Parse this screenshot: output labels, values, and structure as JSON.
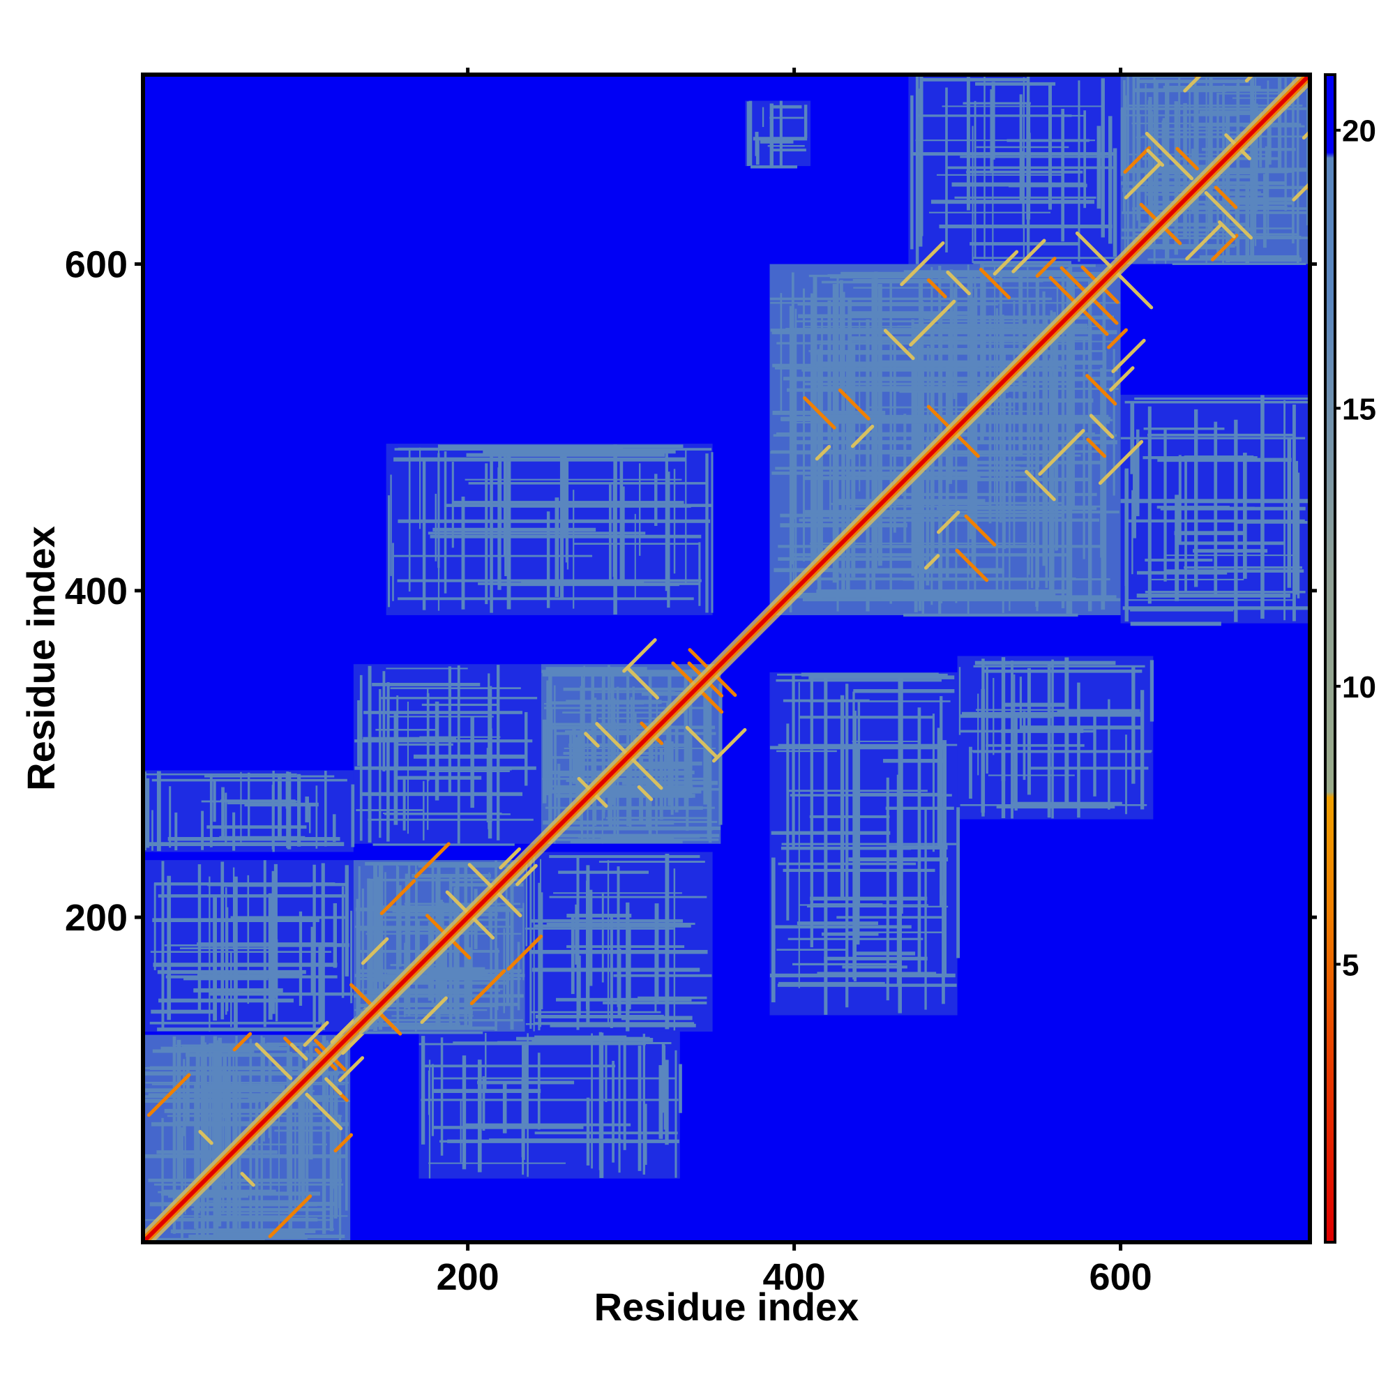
{
  "chart_data": {
    "type": "heatmap",
    "title": "",
    "xlabel": "Residue index",
    "ylabel": "Residue index",
    "xlim": [
      1,
      716
    ],
    "ylim": [
      1,
      716
    ],
    "x_ticks": [
      200,
      400,
      600
    ],
    "y_ticks": [
      200,
      400,
      600
    ],
    "x_tick_labels": [
      "200",
      "400",
      "600"
    ],
    "y_tick_labels": [
      "200",
      "400",
      "600"
    ],
    "colorbar": {
      "range": [
        0,
        21
      ],
      "ticks": [
        5,
        10,
        15,
        20
      ],
      "tick_labels": [
        "5",
        "10",
        "15",
        "20"
      ],
      "colors": [
        {
          "value": 0,
          "color": "#e00000"
        },
        {
          "value": 3,
          "color": "#e83800"
        },
        {
          "value": 6,
          "color": "#f08000"
        },
        {
          "value": 8,
          "color": "#f0a000"
        },
        {
          "value": 8.1,
          "color": "#9aab8a"
        },
        {
          "value": 12,
          "color": "#8fa096"
        },
        {
          "value": 17,
          "color": "#5a86bf"
        },
        {
          "value": 19.5,
          "color": "#5a86bf"
        },
        {
          "value": 19.6,
          "color": "#0000f5"
        },
        {
          "value": 21,
          "color": "#0000f5"
        }
      ]
    },
    "background_color": "#0000f5",
    "contact_color": "#5a86bf",
    "near_contact_color": "#d8c060",
    "diagonal_color": "#e00000",
    "domains": [
      {
        "start": 1,
        "end": 128
      },
      {
        "start": 130,
        "end": 235
      },
      {
        "start": 245,
        "end": 355
      },
      {
        "start": 385,
        "end": 600
      },
      {
        "start": 600,
        "end": 716
      }
    ],
    "interdomain_blocks": [
      {
        "x": [
          1,
          130
        ],
        "y": [
          130,
          235
        ]
      },
      {
        "x": [
          130,
          245
        ],
        "y": [
          245,
          355
        ]
      },
      {
        "x": [
          150,
          350
        ],
        "y": [
          385,
          490
        ]
      },
      {
        "x": [
          385,
          500
        ],
        "y": [
          140,
          350
        ]
      },
      {
        "x": [
          500,
          620
        ],
        "y": [
          260,
          360
        ]
      },
      {
        "x": [
          600,
          716
        ],
        "y": [
          380,
          520
        ]
      },
      {
        "x": [
          470,
          600
        ],
        "y": [
          600,
          716
        ]
      },
      {
        "x": [
          370,
          410
        ],
        "y": [
          660,
          700
        ]
      },
      {
        "x": [
          1,
          130
        ],
        "y": [
          240,
          290
        ]
      },
      {
        "x": [
          170,
          330
        ],
        "y": [
          40,
          130
        ]
      },
      {
        "x": [
          235,
          350
        ],
        "y": [
          130,
          240
        ]
      }
    ]
  }
}
